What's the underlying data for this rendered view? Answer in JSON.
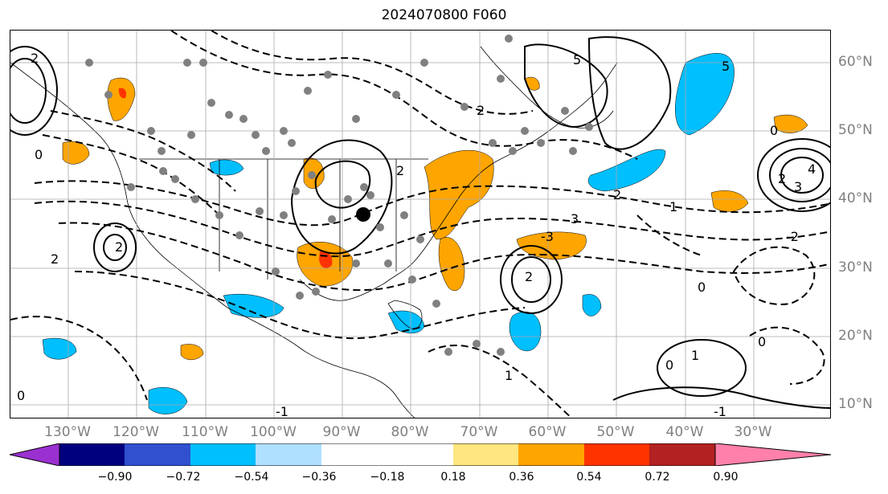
{
  "title": "2024070800 F060",
  "longitude_labels": [
    "130°W",
    "120°W",
    "110°W",
    "100°W",
    "90°W",
    "80°W",
    "70°W",
    "60°W",
    "50°W",
    "40°W",
    "30°W"
  ],
  "latitude_labels": [
    "60°N",
    "50°N",
    "40°N",
    "30°N",
    "20°N",
    "10°N"
  ],
  "colorbar": {
    "ticks": [
      "−0.90",
      "−0.72",
      "−0.54",
      "−0.36",
      "−0.18",
      "0.18",
      "0.36",
      "0.54",
      "0.72",
      "0.90"
    ],
    "colors": [
      "#9b30d0",
      "#00007f",
      "#3050d0",
      "#00bfff",
      "#b0e0ff",
      "#ffffff",
      "#ffe680",
      "#ffa500",
      "#ff3300",
      "#b22222",
      "#ff80aa"
    ]
  },
  "contour_labels": [
    "0",
    "1",
    "2",
    "3",
    "4",
    "5",
    "-1",
    "-2",
    "-3"
  ],
  "colors": {
    "grid": "#a9a9a9",
    "positive_contour": "#000000",
    "negative_contour": "#000000",
    "station": "#808080",
    "marker": "#000000"
  }
}
